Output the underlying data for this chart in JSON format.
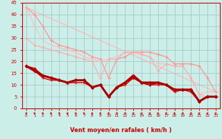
{
  "background_color": "#cceee8",
  "grid_color": "#aacccc",
  "xlabel": "Vent moyen/en rafales ( km/h )",
  "xlabel_color": "#cc0000",
  "tick_color": "#cc0000",
  "xlim": [
    -0.5,
    23.5
  ],
  "ylim": [
    0,
    45
  ],
  "yticks": [
    0,
    5,
    10,
    15,
    20,
    25,
    30,
    35,
    40,
    45
  ],
  "xticks": [
    0,
    1,
    2,
    3,
    4,
    5,
    6,
    7,
    8,
    9,
    10,
    11,
    12,
    13,
    14,
    15,
    16,
    17,
    18,
    19,
    20,
    21,
    22,
    23
  ],
  "lines": [
    {
      "x": [
        0,
        1,
        2,
        3,
        4,
        5,
        6,
        7,
        8,
        9,
        10,
        11,
        12,
        13,
        14,
        15,
        16,
        17,
        18,
        19,
        20,
        21,
        22,
        23
      ],
      "y": [
        43,
        40,
        35,
        29,
        27,
        26,
        25,
        24,
        22,
        21,
        13,
        21,
        22,
        24,
        24,
        24,
        23,
        22,
        19,
        19,
        19,
        18,
        13,
        7
      ],
      "color": "#ff9999",
      "lw": 1.0,
      "marker": "D",
      "ms": 2.0,
      "zorder": 2
    },
    {
      "x": [
        0,
        1,
        2,
        3,
        4,
        5,
        6,
        7,
        8,
        9,
        10,
        11,
        12,
        13,
        14,
        15,
        16,
        17,
        18,
        19,
        20,
        21,
        22,
        23
      ],
      "y": [
        43,
        35,
        29,
        27,
        26,
        25,
        24,
        22,
        21,
        20,
        21,
        22,
        24,
        24,
        23,
        22,
        19,
        19,
        18,
        18,
        13,
        6,
        7,
        7
      ],
      "color": "#ffbbbb",
      "lw": 0.8,
      "marker": null,
      "ms": 0,
      "zorder": 2
    },
    {
      "x": [
        0,
        23
      ],
      "y": [
        43,
        7
      ],
      "color": "#ffbbbb",
      "lw": 1.0,
      "marker": null,
      "ms": 0,
      "zorder": 1
    },
    {
      "x": [
        0,
        1,
        2,
        3,
        4,
        5,
        6,
        7,
        8,
        9,
        10,
        11,
        12,
        13,
        14,
        15,
        16,
        17,
        18,
        19,
        20,
        21,
        22,
        23
      ],
      "y": [
        30,
        27,
        26,
        25,
        24,
        23,
        22,
        21,
        20,
        13,
        21,
        21,
        24,
        24,
        23,
        22,
        16,
        19,
        18,
        18,
        13,
        6,
        5,
        5
      ],
      "color": "#ffaaaa",
      "lw": 0.8,
      "marker": "D",
      "ms": 1.8,
      "zorder": 2
    },
    {
      "x": [
        0,
        1,
        2,
        3,
        4,
        5,
        6,
        7,
        8,
        9,
        10,
        11,
        12,
        13,
        14,
        15,
        16,
        17,
        18,
        19,
        20,
        21,
        22,
        23
      ],
      "y": [
        18,
        17,
        14,
        13,
        12,
        11,
        12,
        12,
        9,
        10,
        5,
        9,
        11,
        13,
        11,
        10,
        11,
        10,
        8,
        8,
        8,
        3,
        5,
        5
      ],
      "color": "#cc0000",
      "lw": 1.4,
      "marker": "D",
      "ms": 2.2,
      "zorder": 4
    },
    {
      "x": [
        0,
        1,
        2,
        3,
        4,
        5,
        6,
        7,
        8,
        9,
        10,
        11,
        12,
        13,
        14,
        15,
        16,
        17,
        18,
        19,
        20,
        21,
        22,
        23
      ],
      "y": [
        18,
        17,
        13,
        12,
        12,
        11,
        11,
        11,
        9,
        10,
        5,
        9,
        10,
        13,
        11,
        10,
        10,
        10,
        7,
        8,
        7,
        3,
        5,
        5
      ],
      "color": "#ee3333",
      "lw": 1.0,
      "marker": "D",
      "ms": 1.8,
      "zorder": 3
    },
    {
      "x": [
        0,
        1,
        2,
        3,
        4,
        5,
        6,
        7,
        8,
        9,
        10,
        11,
        12,
        13,
        14,
        15,
        16,
        17,
        18,
        19,
        20,
        21,
        22,
        23
      ],
      "y": [
        18,
        16,
        14,
        13,
        12,
        11,
        12,
        12,
        9,
        10,
        5,
        9,
        11,
        14,
        11,
        11,
        11,
        10,
        8,
        8,
        8,
        3,
        5,
        5
      ],
      "color": "#aa0000",
      "lw": 2.2,
      "marker": "D",
      "ms": 2.5,
      "zorder": 5
    },
    {
      "x": [
        0,
        1,
        2,
        3,
        4,
        5,
        6,
        7,
        8,
        9,
        10,
        11,
        12,
        13,
        14,
        15,
        16,
        17,
        18,
        19,
        20,
        21,
        22,
        23
      ],
      "y": [
        18,
        16,
        13,
        12,
        12,
        11,
        11,
        11,
        9,
        10,
        5,
        9,
        10,
        13,
        11,
        10,
        10,
        10,
        7,
        8,
        7,
        3,
        5,
        5
      ],
      "color": "#cc2222",
      "lw": 1.0,
      "marker": null,
      "ms": 0,
      "zorder": 3
    }
  ]
}
